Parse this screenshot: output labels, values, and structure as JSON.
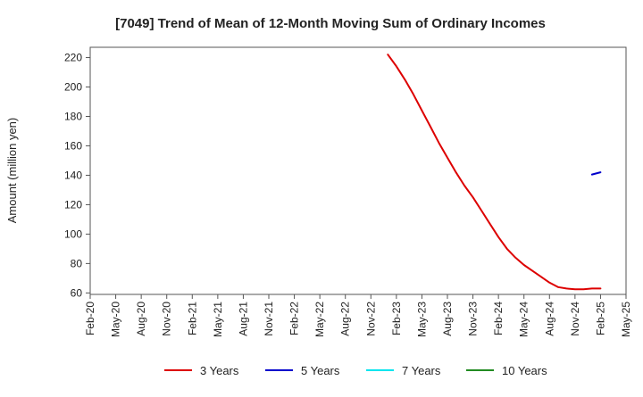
{
  "chart_data": {
    "type": "line",
    "title": "[7049]  Trend of Mean of 12-Month Moving Sum of Ordinary Incomes",
    "xlabel": "",
    "ylabel": "Amount (million yen)",
    "ylim": [
      59,
      227
    ],
    "yticks": [
      60,
      80,
      100,
      120,
      140,
      160,
      180,
      200,
      220
    ],
    "x_categories": [
      "Feb-20",
      "May-20",
      "Aug-20",
      "Nov-20",
      "Feb-21",
      "May-21",
      "Aug-21",
      "Nov-21",
      "Feb-22",
      "May-22",
      "Aug-22",
      "Nov-22",
      "Feb-23",
      "May-23",
      "Aug-23",
      "Nov-23",
      "Feb-24",
      "May-24",
      "Aug-24",
      "Nov-24",
      "Feb-25",
      "May-25"
    ],
    "grid": true,
    "legend_position": "bottom",
    "series": [
      {
        "name": "3 Years",
        "color": "#dd0000",
        "points": [
          [
            "Jan-23",
            222
          ],
          [
            "Feb-23",
            214
          ],
          [
            "Mar-23",
            205
          ],
          [
            "Apr-23",
            195
          ],
          [
            "May-23",
            184
          ],
          [
            "Jun-23",
            173
          ],
          [
            "Jul-23",
            162
          ],
          [
            "Aug-23",
            152
          ],
          [
            "Sep-23",
            142
          ],
          [
            "Oct-23",
            133
          ],
          [
            "Nov-23",
            125
          ],
          [
            "Dec-23",
            116
          ],
          [
            "Jan-24",
            107
          ],
          [
            "Feb-24",
            98
          ],
          [
            "Mar-24",
            90
          ],
          [
            "Apr-24",
            84
          ],
          [
            "May-24",
            79
          ],
          [
            "Jun-24",
            75
          ],
          [
            "Jul-24",
            71
          ],
          [
            "Aug-24",
            67
          ],
          [
            "Sep-24",
            64
          ],
          [
            "Oct-24",
            63
          ],
          [
            "Nov-24",
            62.5
          ],
          [
            "Dec-24",
            62.5
          ],
          [
            "Jan-25",
            63
          ],
          [
            "Feb-25",
            63
          ]
        ]
      },
      {
        "name": "5 Years",
        "color": "#0000cc",
        "points": [
          [
            "Jan-25",
            140.5
          ],
          [
            "Feb-25",
            142
          ]
        ]
      },
      {
        "name": "7 Years",
        "color": "#00e5ee",
        "points": []
      },
      {
        "name": "10 Years",
        "color": "#228b22",
        "points": []
      }
    ]
  }
}
